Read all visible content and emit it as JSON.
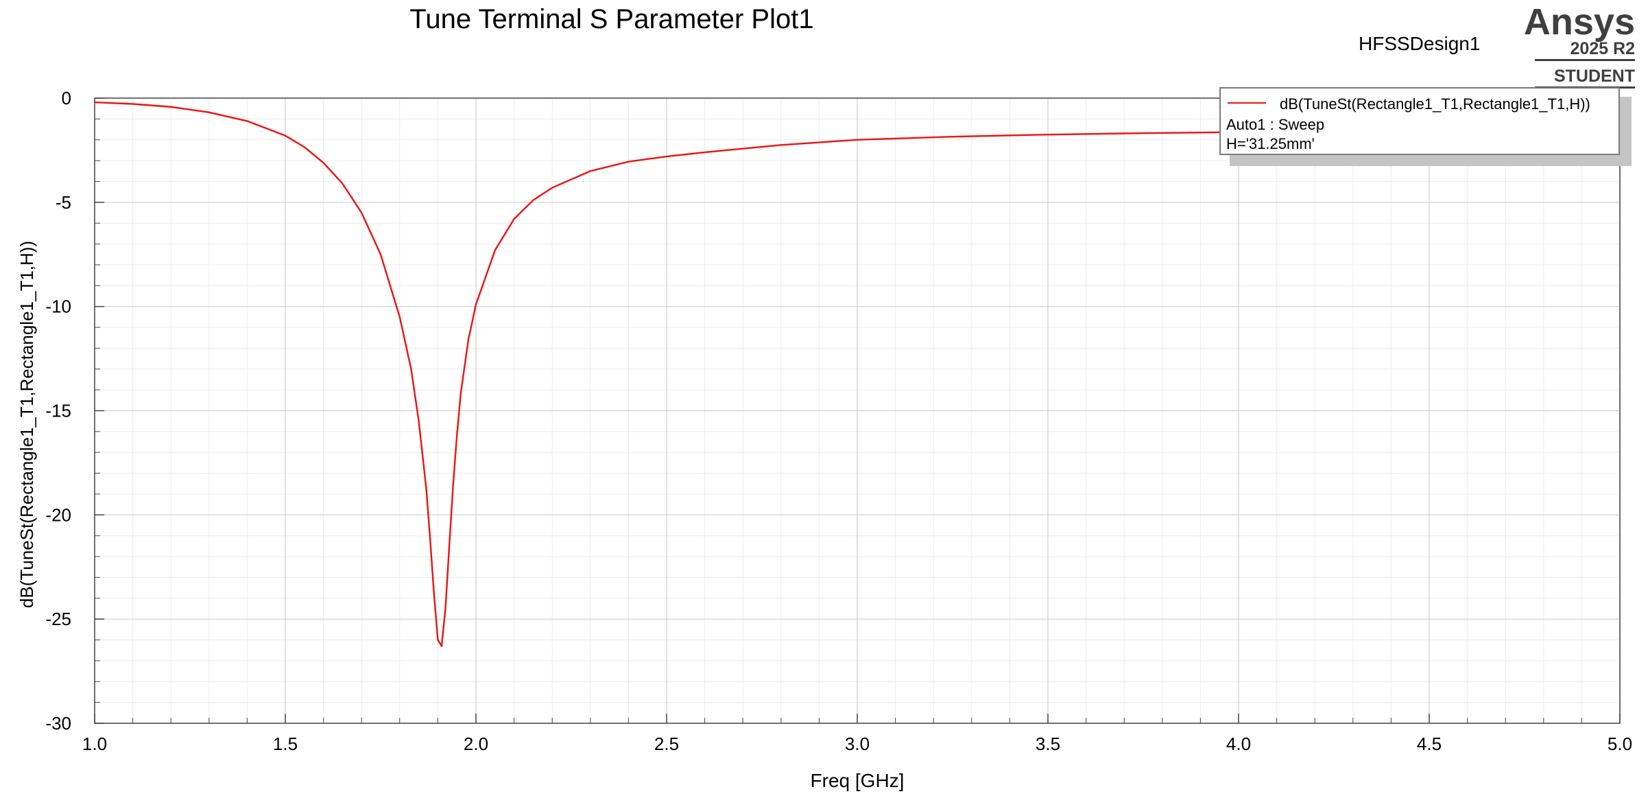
{
  "header": {
    "title": "Tune Terminal S Parameter Plot1",
    "design_name": "HFSSDesign1"
  },
  "branding": {
    "name": "Ansys",
    "version": "2025 R2",
    "edition": "STUDENT"
  },
  "legend": {
    "series_label": "dB(TuneSt(Rectangle1_T1,Rectangle1_T1,H))",
    "setup_label": "Auto1 : Sweep",
    "variable_label": "H='31.25mm'"
  },
  "colors": {
    "series": "#ee1111",
    "axes": "#444444",
    "grid_major": "#cfcfcf",
    "grid_minor": "#ececec"
  },
  "chart_data": {
    "type": "line",
    "title": "Tune Terminal S Parameter Plot1",
    "xlabel": "Freq [GHz]",
    "ylabel": "dB(TuneSt(Rectangle1_T1,Rectangle1_T1,H))",
    "xlim": [
      1.0,
      5.0
    ],
    "ylim": [
      -30,
      0
    ],
    "x_ticks": [
      1.0,
      1.5,
      2.0,
      2.5,
      3.0,
      3.5,
      4.0,
      4.5,
      5.0
    ],
    "x_tick_labels": [
      "1.0",
      "1.5",
      "2.0",
      "2.5",
      "3.0",
      "3.5",
      "4.0",
      "4.5",
      "5.0"
    ],
    "y_ticks": [
      0,
      -5,
      -10,
      -15,
      -20,
      -25,
      -30
    ],
    "y_tick_labels": [
      "0",
      "-5",
      "-10",
      "-15",
      "-20",
      "-25",
      "-30"
    ],
    "grid": true,
    "legend_position": "top-right",
    "series": [
      {
        "name": "dB(TuneSt(Rectangle1_T1,Rectangle1_T1,H))",
        "color": "#ee1111",
        "x": [
          1.0,
          1.1,
          1.2,
          1.3,
          1.4,
          1.5,
          1.55,
          1.6,
          1.65,
          1.7,
          1.75,
          1.8,
          1.83,
          1.85,
          1.87,
          1.88,
          1.89,
          1.9,
          1.91,
          1.92,
          1.93,
          1.94,
          1.95,
          1.96,
          1.98,
          2.0,
          2.05,
          2.1,
          2.15,
          2.2,
          2.3,
          2.4,
          2.5,
          2.6,
          2.8,
          3.0,
          3.25,
          3.5,
          3.75,
          4.0,
          4.5,
          5.0
        ],
        "y": [
          -0.2,
          -0.28,
          -0.42,
          -0.68,
          -1.1,
          -1.8,
          -2.35,
          -3.1,
          -4.1,
          -5.5,
          -7.5,
          -10.5,
          -13.0,
          -15.5,
          -18.8,
          -21.2,
          -23.8,
          -26.0,
          -26.3,
          -24.5,
          -21.5,
          -18.6,
          -16.2,
          -14.2,
          -11.6,
          -9.9,
          -7.3,
          -5.8,
          -4.9,
          -4.3,
          -3.5,
          -3.05,
          -2.8,
          -2.6,
          -2.25,
          -2.0,
          -1.85,
          -1.75,
          -1.68,
          -1.63,
          -1.57,
          -1.55
        ]
      }
    ]
  }
}
